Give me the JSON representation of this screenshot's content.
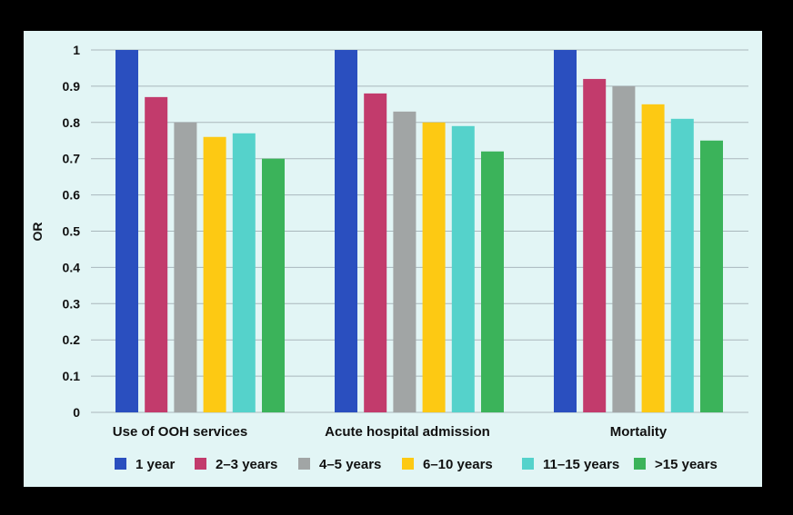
{
  "chart_data": {
    "type": "bar",
    "ylabel": "OR",
    "xlabel": "",
    "ylim": [
      0,
      1
    ],
    "yticks": [
      0,
      0.1,
      0.2,
      0.3,
      0.4,
      0.5,
      0.6,
      0.7,
      0.8,
      0.9,
      1
    ],
    "ytick_labels": [
      "0",
      "0.1",
      "0.2",
      "0.3",
      "0.4",
      "0.5",
      "0.6",
      "0.7",
      "0.8",
      "0.9",
      "1"
    ],
    "categories": [
      "Use of OOH services",
      "Acute hospital admission",
      "Mortality"
    ],
    "series": [
      {
        "name": "1 year",
        "color": "#2a4fbf",
        "values": [
          1.0,
          1.0,
          1.0
        ]
      },
      {
        "name": "2–3 years",
        "color": "#c23b6c",
        "values": [
          0.87,
          0.88,
          0.92
        ]
      },
      {
        "name": "4–5 years",
        "color": "#a1a5a5",
        "values": [
          0.8,
          0.83,
          0.9
        ]
      },
      {
        "name": "6–10 years",
        "color": "#fdc913",
        "values": [
          0.76,
          0.8,
          0.85
        ]
      },
      {
        "name": "11–15 years",
        "color": "#55d2cb",
        "values": [
          0.77,
          0.79,
          0.81
        ]
      },
      {
        "name": ">15 years",
        "color": "#3bb35a",
        "values": [
          0.7,
          0.72,
          0.75
        ]
      }
    ],
    "grid": true,
    "grid_color": "#a9b7bc",
    "legend_position": "bottom"
  }
}
